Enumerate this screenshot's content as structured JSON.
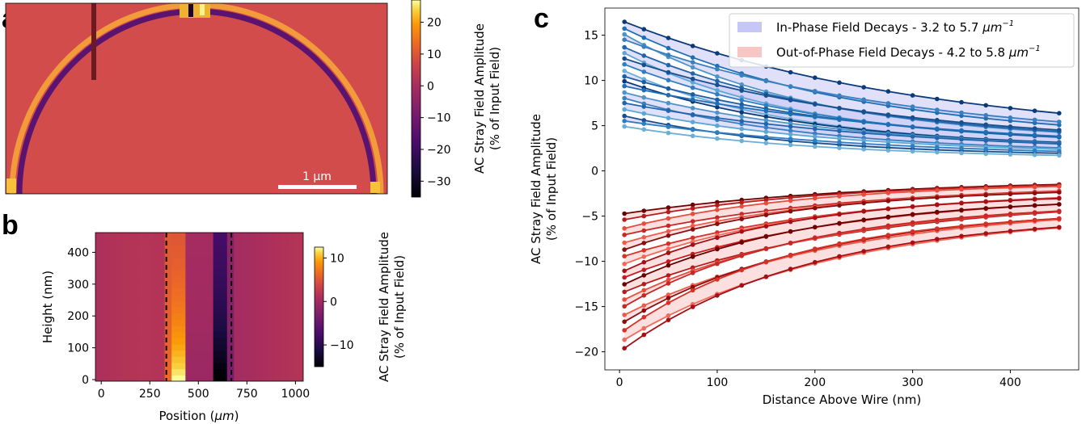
{
  "chart_data": [
    {
      "panel": "a",
      "type": "heatmap",
      "title": "",
      "shape": "semicircular ring of stray field",
      "scalebar_label": "1 μm",
      "colorbar": {
        "label_line1": "AC Stray Field Amplitude",
        "label_line2": "(% of Input Field)",
        "range": [
          -35,
          27
        ],
        "ticks": [
          20,
          10,
          0,
          -10,
          -20,
          -30
        ],
        "tick_labels": [
          "20",
          "10",
          "0",
          "−10",
          "−20",
          "−30"
        ],
        "colormap": "inferno"
      },
      "background_value": 1,
      "outer_ring_value": 12,
      "inner_ring_value": -16,
      "marker_line": {
        "color": "#6b1a22"
      }
    },
    {
      "panel": "b",
      "type": "heatmap",
      "xlabel_prefix": "Position (",
      "xlabel_unit": "μm",
      "xlabel_suffix": ")",
      "ylabel": "Height (nm)",
      "xlim": [
        -30,
        1040
      ],
      "ylim": [
        -5,
        462
      ],
      "xticks": [
        0,
        250,
        500,
        750,
        1000
      ],
      "xtick_labels": [
        "0",
        "250",
        "500",
        "750",
        "1000"
      ],
      "yticks": [
        0,
        100,
        200,
        300,
        400
      ],
      "ytick_labels": [
        "0",
        "100",
        "200",
        "300",
        "400"
      ],
      "dashed_lines_x": [
        335,
        670
      ],
      "positive_band": [
        370,
        450
      ],
      "negative_band": [
        560,
        650
      ],
      "colorbar": {
        "label_line1": "AC Stray Field Amplitude",
        "label_line2": "(% of Input Field)",
        "range": [
          -15,
          12.5
        ],
        "ticks": [
          10,
          0,
          -10
        ],
        "tick_labels": [
          "10",
          "0",
          "−10"
        ],
        "colormap": "inferno"
      }
    },
    {
      "panel": "c",
      "type": "line",
      "xlabel": "Distance Above Wire (nm)",
      "ylabel_line1": "AC Stray Field Amplitude",
      "ylabel_line2": "(% of Input Field)",
      "xlim": [
        -15,
        470
      ],
      "ylim": [
        -22,
        18
      ],
      "xticks": [
        0,
        100,
        200,
        300,
        400
      ],
      "xtick_labels": [
        "0",
        "100",
        "200",
        "300",
        "400"
      ],
      "yticks": [
        15,
        10,
        5,
        0,
        -5,
        -10,
        -15,
        -20
      ],
      "ytick_labels": [
        "15",
        "10",
        "5",
        "0",
        "−5",
        "−10",
        "−15",
        "−20"
      ],
      "x": [
        5,
        25,
        50,
        75,
        100,
        125,
        150,
        175,
        200,
        225,
        250,
        275,
        300,
        325,
        350,
        375,
        400,
        425,
        450
      ],
      "in_phase": {
        "start_values": [
          16.7,
          16.0,
          15.4,
          14.7,
          13.9,
          13.3,
          12.6,
          12.0,
          11.3,
          10.6,
          10.1,
          9.5,
          8.8,
          8.2,
          7.6,
          6.9,
          6.2,
          5.6,
          5.0
        ],
        "decay_range": [
          3.2,
          5.7
        ],
        "colors": [
          "#0b3a7a",
          "#1f6fb4",
          "#4e94c8",
          "#3a7fbf",
          "#2166ac",
          "#5ea6d4",
          "#16508f",
          "#2f7dc2",
          "#6baed6",
          "#1b5ea3"
        ]
      },
      "out_of_phase": {
        "start_values": [
          -4.8,
          -5.5,
          -6.5,
          -7.2,
          -8.1,
          -8.9,
          -9.6,
          -10.5,
          -11.3,
          -12.0,
          -12.8,
          -13.6,
          -14.5,
          -15.3,
          -16.2,
          -17.0,
          -18.0,
          -19.0,
          -20.0
        ],
        "decay_range": [
          4.2,
          5.8
        ],
        "colors": [
          "#6b0000",
          "#b71c1c",
          "#e74c3c",
          "#c62828",
          "#ef5b4b",
          "#8b0e0e",
          "#d73027",
          "#f26a5a",
          "#a50f15",
          "#cb181d"
        ]
      },
      "legend": [
        {
          "label": "In-Phase Field Decays - 3.2 to 5.7 ",
          "unit": "μm",
          "exp": "−1",
          "color": "#c6c6f7"
        },
        {
          "label": "Out-of-Phase Field Decays - 4.2 to 5.8 ",
          "unit": "μm",
          "exp": "−1",
          "color": "#f9c6c6"
        }
      ],
      "legend_position": "top-right"
    }
  ],
  "labels": {
    "a": "a",
    "b": "b",
    "c": "c"
  }
}
